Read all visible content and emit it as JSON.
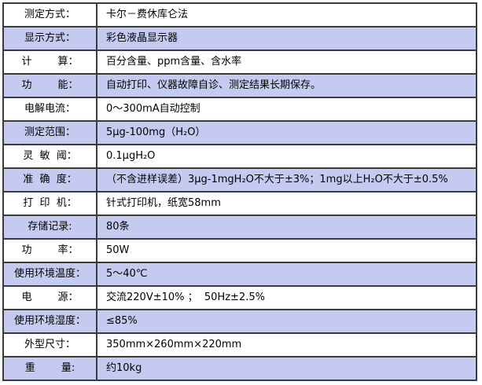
{
  "colors": {
    "row_alt": "#c5cbf0",
    "row_base": "#ffffff",
    "border": "#3b3b3b",
    "text": "#000000"
  },
  "table": {
    "rows": [
      {
        "label": "测定方式：",
        "value": "卡尔－费休库仑法"
      },
      {
        "label": "显示方式：",
        "value": "彩色液晶显示器"
      },
      {
        "label": "计        算：",
        "value": "百分含量、ppm含量、含水率"
      },
      {
        "label": "功        能：",
        "value": "自动打印、仪器故障自诊、测定结果长期保存。"
      },
      {
        "label": "电解电流：",
        "value": "0～300mA自动控制"
      },
      {
        "label": "测定范围：",
        "value": "5μg-100mg（H₂O）"
      },
      {
        "label": "灵  敏  阈：",
        "value": "0.1μgH₂O"
      },
      {
        "label": "准  确  度：",
        "value": "（不含进样误差）3μg-1mgH₂O不大于±3%；1mg以上H₂O不大于±0.5%"
      },
      {
        "label": "打  印  机：",
        "value": "针式打印机，纸宽58mm"
      },
      {
        "label": "存储记录:",
        "value": "80条"
      },
      {
        "label": "功        率：",
        "value": "50W"
      },
      {
        "label": "使用环境温度：",
        "value": "5～40℃"
      },
      {
        "label": "电        源：",
        "value": "交流220V±10% ；  50Hz±2.5%"
      },
      {
        "label": "使用环境湿度：",
        "value": "≤85%"
      },
      {
        "label": "外型尺寸：",
        "value": "350mm×260mm×220mm"
      },
      {
        "label": "重        量:",
        "value": "约10kg"
      }
    ]
  }
}
